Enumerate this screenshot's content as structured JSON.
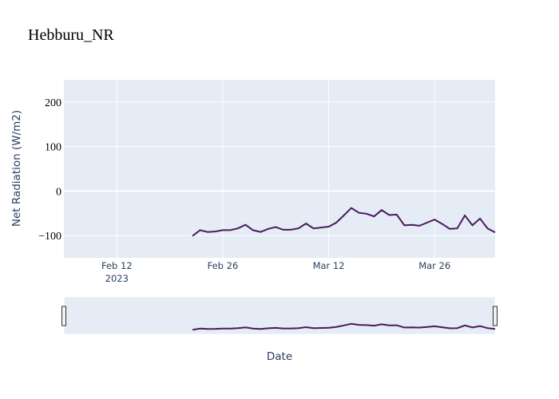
{
  "chart_data": {
    "type": "line",
    "title": "Hebburu_NR",
    "xlabel": "Date",
    "ylabel": "Net Radiation (W/m2)",
    "ylim": [
      -150,
      250
    ],
    "xlim": [
      "2023-02-05",
      "2023-04-03"
    ],
    "yticks": [
      200,
      100,
      0,
      -100
    ],
    "ytick_labels": [
      "200",
      "100",
      "0",
      "−100"
    ],
    "xticks": [
      {
        "date": "2023-02-12",
        "label": "Feb 12",
        "sublabel": "2023"
      },
      {
        "date": "2023-02-26",
        "label": "Feb 26"
      },
      {
        "date": "2023-03-12",
        "label": "Mar 12"
      },
      {
        "date": "2023-03-26",
        "label": "Mar 26"
      }
    ],
    "grid": true,
    "line_color": "#4a1a5c",
    "plot_bg": "#e5ecf6",
    "range_slider": true,
    "series": [
      {
        "name": "Net Radiation",
        "start_date": "2023-02-22",
        "step_days": 1,
        "values": [
          -101,
          -88,
          -92,
          -91,
          -88,
          -88,
          -84,
          -76,
          -88,
          -92,
          -85,
          -81,
          -87,
          -87,
          -84,
          -73,
          -84,
          -82,
          -80,
          -71,
          -55,
          -38,
          -49,
          -51,
          -57,
          -43,
          -54,
          -53,
          -77,
          -76,
          -78,
          -71,
          -64,
          -74,
          -85,
          -84,
          -55,
          -77,
          -62,
          -84,
          -93
        ]
      }
    ]
  }
}
